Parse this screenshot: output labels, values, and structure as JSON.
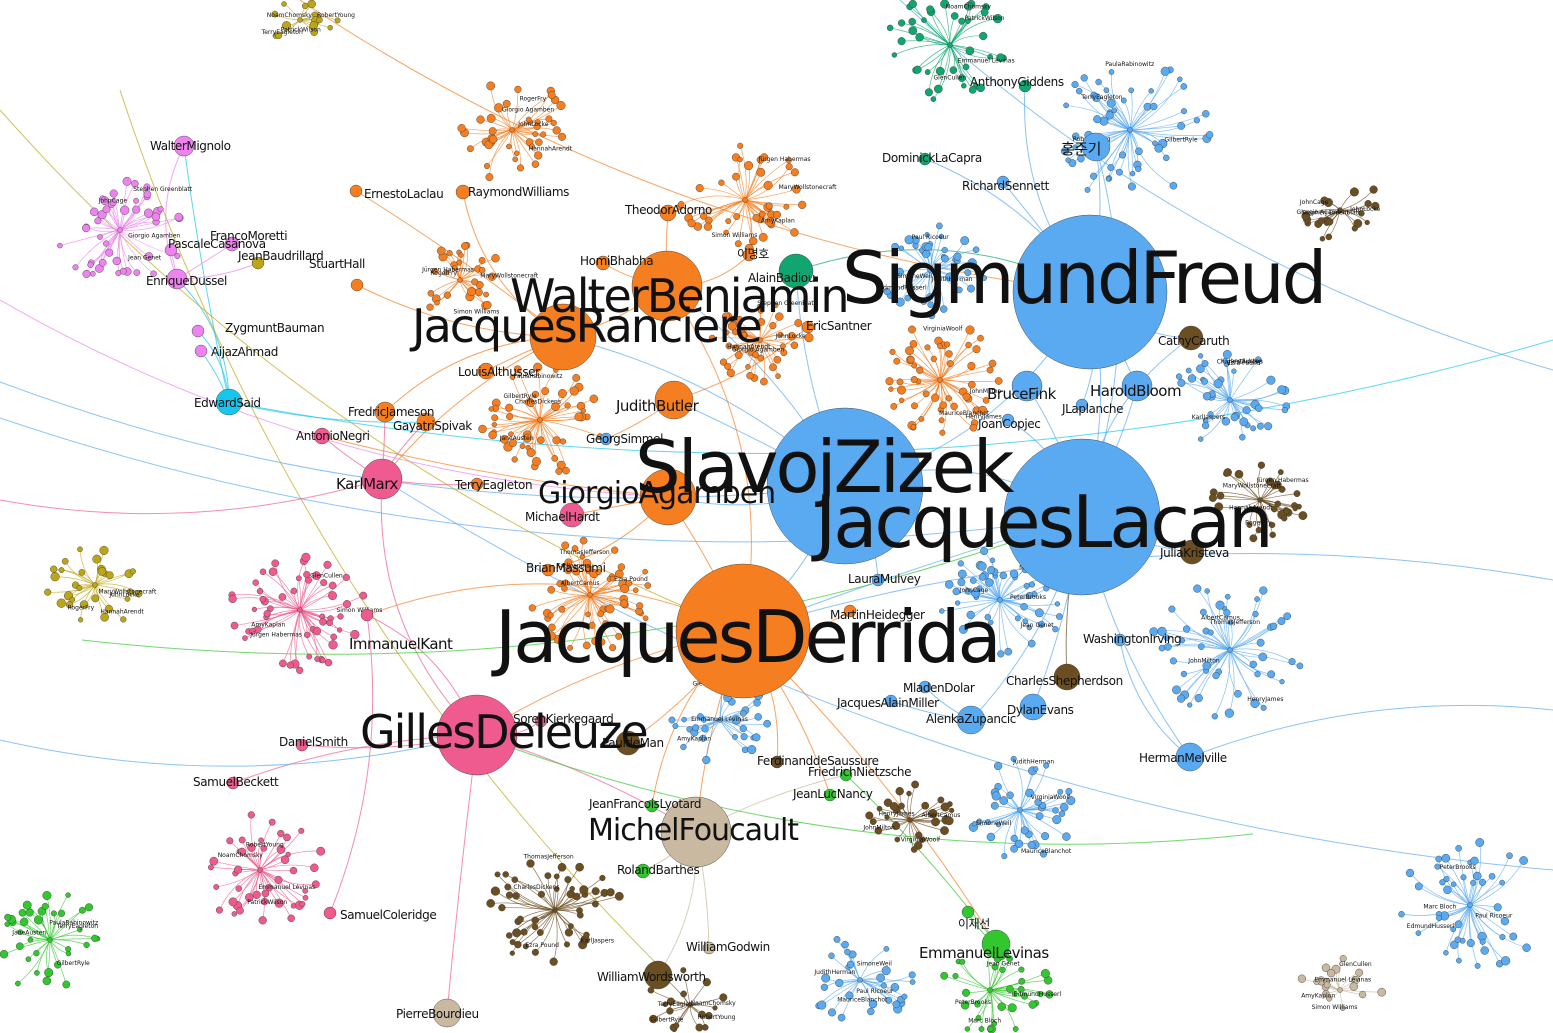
{
  "colors": {
    "orange": "#f57e20",
    "blue": "#5aaaf2",
    "pink": "#ef5b8e",
    "magenta": "#ee82ee",
    "green": "#33c72f",
    "teal": "#11a66f",
    "brown": "#6b4e22",
    "olive": "#bca617",
    "tan": "#c8b9a0",
    "cyan": "#17c6ef"
  },
  "nodes": [
    {
      "id": "zizek",
      "label": "SlavojZizek",
      "color": "blue"
    },
    {
      "id": "lacan",
      "label": "JacquesLacan",
      "color": "blue"
    },
    {
      "id": "freud",
      "label": "SigmundFreud",
      "color": "blue"
    },
    {
      "id": "derrida",
      "label": "JacquesDerrida",
      "color": "orange"
    },
    {
      "id": "benjamin",
      "label": "WalterBenjamin",
      "color": "orange"
    },
    {
      "id": "ranciere",
      "label": "JacquesRanciere",
      "color": "orange"
    },
    {
      "id": "agamben",
      "label": "GiorgioAgamben",
      "color": "orange"
    },
    {
      "id": "deleuze",
      "label": "GillesDeleuze",
      "color": "pink"
    },
    {
      "id": "foucault",
      "label": "MichelFoucault",
      "color": "tan"
    },
    {
      "id": "marx",
      "label": "KarlMarx",
      "color": "pink"
    },
    {
      "id": "kant",
      "label": "ImmanuelKant",
      "color": "pink"
    },
    {
      "id": "butler",
      "label": "JudithButler",
      "color": "orange"
    },
    {
      "id": "levinas",
      "label": "EmmanuelLevinas",
      "color": "green"
    },
    {
      "id": "badiou",
      "label": "AlainBadiou",
      "color": "teal"
    },
    {
      "id": "fink",
      "label": "BruceFink",
      "color": "blue"
    },
    {
      "id": "bloom",
      "label": "HaroldBloom",
      "color": "blue"
    },
    {
      "id": "hong",
      "label": "홍준기",
      "color": "blue"
    },
    {
      "id": "melville",
      "label": "HermanMelville",
      "color": "blue"
    },
    {
      "id": "zupancic",
      "label": "AlenkaZupancic",
      "color": "blue"
    },
    {
      "id": "evans",
      "label": "DylanEvans",
      "color": "blue"
    },
    {
      "id": "shepherdson",
      "label": "CharlesShepherdson",
      "color": "brown"
    },
    {
      "id": "caruth",
      "label": "CathyCaruth",
      "color": "brown"
    },
    {
      "id": "kristeva",
      "label": "JuliaKristeva",
      "color": "brown"
    },
    {
      "id": "wordsworth",
      "label": "WilliamWordsworth",
      "color": "brown"
    },
    {
      "id": "bourdieu",
      "label": "PierreBourdieu",
      "color": "tan"
    },
    {
      "id": "said",
      "label": "EdwardSaid",
      "color": "cyan"
    },
    {
      "id": "dussel",
      "label": "EnriqueDussel",
      "color": "magenta"
    },
    {
      "id": "mignolo",
      "label": "WalterMignolo",
      "color": "magenta"
    },
    {
      "id": "bauman",
      "label": "ZygmuntBauman",
      "color": "magenta"
    },
    {
      "id": "ahmad",
      "label": "AijazAhmad",
      "color": "magenta"
    },
    {
      "id": "jameson",
      "label": "FredricJameson",
      "color": "orange"
    },
    {
      "id": "spivak",
      "label": "GayatriSpivak",
      "color": "orange"
    },
    {
      "id": "althusser",
      "label": "LouisAlthusser",
      "color": "orange"
    },
    {
      "id": "negri",
      "label": "AntonioNegri",
      "color": "pink"
    },
    {
      "id": "hardt",
      "label": "MichaelHardt",
      "color": "pink"
    },
    {
      "id": "williams",
      "label": "RaymondWilliams",
      "color": "orange"
    },
    {
      "id": "adorno",
      "label": "TheodorAdorno",
      "color": "orange"
    },
    {
      "id": "bhabha",
      "label": "HomiBhabha",
      "color": "orange"
    },
    {
      "id": "laclau",
      "label": "ErnestoLaclau",
      "color": "orange"
    },
    {
      "id": "hall",
      "label": "StuartHall",
      "color": "orange"
    },
    {
      "id": "moretti",
      "label": "FrancoMoretti",
      "color": "magenta"
    },
    {
      "id": "casanova",
      "label": "PascaleCasanova",
      "color": "magenta"
    },
    {
      "id": "baudrillard",
      "label": "JeanBaudrillard",
      "color": "olive"
    },
    {
      "id": "massumi",
      "label": "BrianMassumi",
      "color": "orange"
    },
    {
      "id": "eagleton",
      "label": "TerryEagleton",
      "color": "orange"
    },
    {
      "id": "demann",
      "label": "PauldeMan",
      "color": "brown"
    },
    {
      "id": "barthes",
      "label": "RolandBarthes",
      "color": "green"
    },
    {
      "id": "lyotard",
      "label": "JeanFrancoisLyotard",
      "color": "green"
    },
    {
      "id": "nietzsche",
      "label": "FriedrichNietzsche",
      "color": "green"
    },
    {
      "id": "nancy",
      "label": "JeanLucNancy",
      "color": "green"
    },
    {
      "id": "saussure",
      "label": "FerdinanddeSaussure",
      "color": "brown"
    },
    {
      "id": "heidegger",
      "label": "MartinHeidegger",
      "color": "orange"
    },
    {
      "id": "miller",
      "label": "JacquesAlainMiller",
      "color": "blue"
    },
    {
      "id": "dolar",
      "label": "MladenDolar",
      "color": "blue"
    },
    {
      "id": "laplanche",
      "label": "JLaplanche",
      "color": "blue"
    },
    {
      "id": "copjec",
      "label": "JoanCopjec",
      "color": "blue"
    },
    {
      "id": "mulvey",
      "label": "LauraMulvey",
      "color": "blue"
    },
    {
      "id": "irving",
      "label": "WashingtonIrving",
      "color": "blue"
    },
    {
      "id": "lacapra",
      "label": "DominickLaCapra",
      "color": "teal"
    },
    {
      "id": "giddens",
      "label": "AnthonyGiddens",
      "color": "teal"
    },
    {
      "id": "sennett",
      "label": "RichardSennett",
      "color": "blue"
    },
    {
      "id": "smith",
      "label": "DanielSmith",
      "color": "pink"
    },
    {
      "id": "beckett",
      "label": "SamuelBeckett",
      "color": "pink"
    },
    {
      "id": "coleridge",
      "label": "SamuelColeridge",
      "color": "pink"
    },
    {
      "id": "kierkegaard",
      "label": "SorenKierkegaard",
      "color": "pink"
    },
    {
      "id": "godwin",
      "label": "WilliamGodwin",
      "color": "tan"
    },
    {
      "id": "levinas2",
      "label": "이재선",
      "color": "green"
    },
    {
      "id": "lee",
      "label": "이명호",
      "color": "orange"
    },
    {
      "id": "simmel",
      "label": "GeorgSimmel",
      "color": "blue"
    },
    {
      "id": "santner",
      "label": "EricSantner",
      "color": "orange"
    }
  ],
  "small_labels": [
    "Giorgio Agamben",
    "JohnLocke",
    "HannahArendt",
    "RogerFry",
    "MaryWollstonecraft",
    "Jürgen Habermas",
    "Simon Williams",
    "AmyKaplan",
    "GlenCullen",
    "Emmanuel Lévinas",
    "PatrickWilson",
    "NoamChomsky",
    "RobertYoung",
    "TerryEagleton",
    "GilbertRyle",
    "PaulaRabinowitz",
    "JaneAusten",
    "CharlesDickens",
    "Ezra Pound",
    "KarlJaspers",
    "ThomasJefferson",
    "AlbertCamus",
    "JohnMilton",
    "HenryJames",
    "VirginiaWoolf",
    "MauriceBlanchot",
    "SimoneWeil",
    "JudithHerman",
    "Paul Ricoeur",
    "EdmundHusserl",
    "Marc Bloch",
    "PeterBrooks",
    "Jean Genet",
    "JohnCage",
    "Stephen Greenblatt"
  ]
}
